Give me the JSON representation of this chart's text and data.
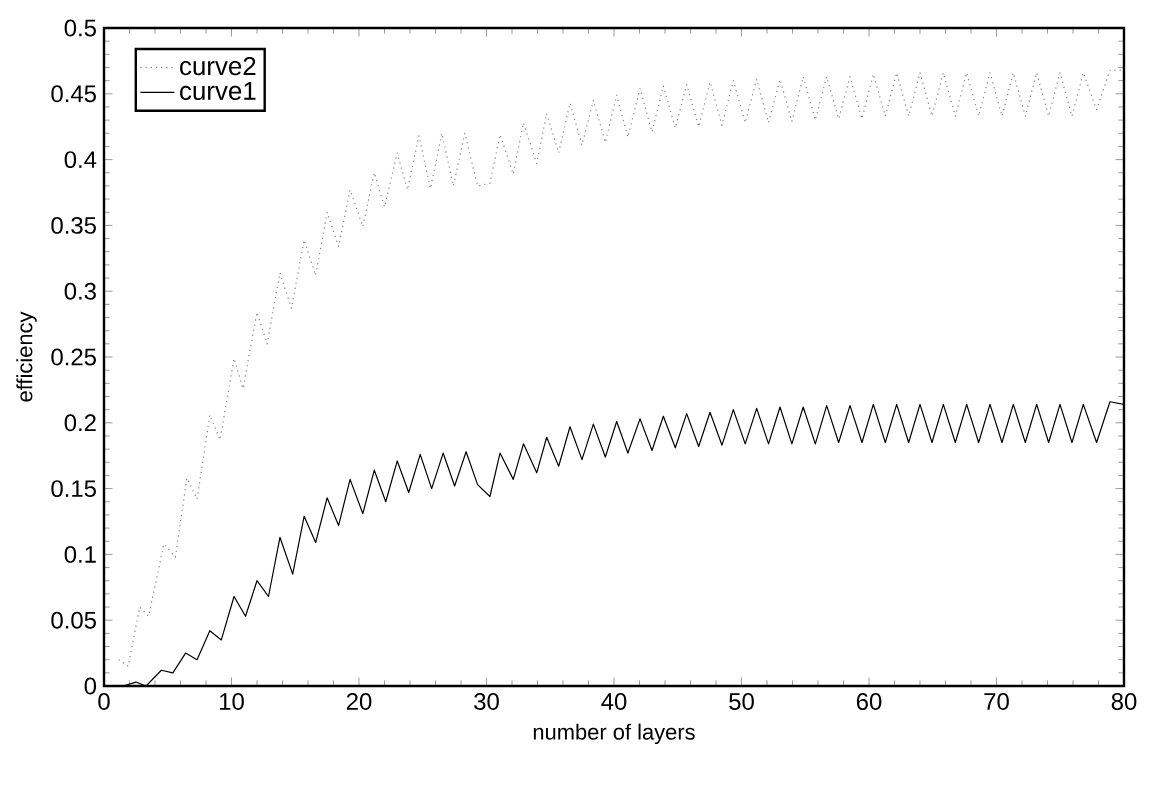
{
  "chart_data": {
    "type": "line",
    "xlabel": "number of layers",
    "ylabel": "efficiency",
    "xlim": [
      0,
      80
    ],
    "ylim": [
      0,
      0.5
    ],
    "xticks": [
      0,
      10,
      20,
      30,
      40,
      50,
      60,
      70,
      80
    ],
    "yticks": [
      0,
      0.05,
      0.1,
      0.15,
      0.2,
      0.25,
      0.3,
      0.35,
      0.4,
      0.45,
      0.5
    ],
    "legend": "top left",
    "grid": false,
    "series": [
      {
        "name": "curve2",
        "color": "#808080",
        "line_style": "dotted",
        "x": [
          1.15,
          1.9,
          2.8,
          3.5,
          4.7,
          5.6,
          6.5,
          7.3,
          8.3,
          9.1,
          10.2,
          10.9,
          12,
          12.8,
          13.8,
          14.7,
          15.7,
          16.6,
          17.5,
          18.4,
          19.3,
          20.3,
          21.2,
          22,
          23,
          23.8,
          24.7,
          25.6,
          26.5,
          27.4,
          28.3,
          29.3,
          30.27,
          31.06,
          32.1,
          32.9,
          33.94,
          34.72,
          35.66,
          36.55,
          37.49,
          38.38,
          39.32,
          40.21,
          41.09,
          42.04,
          42.98,
          43.87,
          44.81,
          45.7,
          46.64,
          47.53,
          48.47,
          49.36,
          50.29,
          51.19,
          52.12,
          53.02,
          53.95,
          54.84,
          55.79,
          56.68,
          57.62,
          58.51,
          59.45,
          60.34,
          61.28,
          62.17,
          63.11,
          64,
          64.94,
          65.83,
          66.77,
          67.66,
          68.6,
          69.49,
          70.43,
          71.32,
          72.26,
          73.15,
          74.09,
          74.98,
          75.92,
          76.81,
          77.85,
          78.9,
          80
        ],
        "values": [
          0.02,
          0.015,
          0.06,
          0.053,
          0.108,
          0.098,
          0.158,
          0.142,
          0.206,
          0.187,
          0.249,
          0.226,
          0.284,
          0.26,
          0.314,
          0.287,
          0.339,
          0.312,
          0.36,
          0.334,
          0.377,
          0.349,
          0.39,
          0.364,
          0.405,
          0.377,
          0.418,
          0.378,
          0.42,
          0.38,
          0.42,
          0.38,
          0.382,
          0.419,
          0.389,
          0.428,
          0.397,
          0.435,
          0.405,
          0.443,
          0.411,
          0.445,
          0.413,
          0.449,
          0.417,
          0.454,
          0.421,
          0.456,
          0.424,
          0.457,
          0.425,
          0.459,
          0.426,
          0.46,
          0.428,
          0.461,
          0.428,
          0.461,
          0.429,
          0.463,
          0.43,
          0.463,
          0.431,
          0.463,
          0.431,
          0.465,
          0.433,
          0.466,
          0.433,
          0.466,
          0.433,
          0.466,
          0.433,
          0.466,
          0.433,
          0.466,
          0.433,
          0.466,
          0.433,
          0.466,
          0.433,
          0.466,
          0.433,
          0.466,
          0.438,
          0.468,
          0.468
        ]
      },
      {
        "name": "curve1",
        "color": "#000000",
        "line_style": "solid",
        "x": [
          1.5,
          2.5,
          3.3,
          4.5,
          5.4,
          6.4,
          7.3,
          8.3,
          9.2,
          10.2,
          11.1,
          12,
          12.9,
          13.8,
          14.8,
          15.7,
          16.6,
          17.5,
          18.4,
          19.3,
          20.3,
          21.2,
          22.1,
          23,
          23.9,
          24.8,
          25.7,
          26.6,
          27.5,
          28.4,
          29.3,
          30.27,
          31.06,
          32.1,
          32.9,
          33.94,
          34.72,
          35.66,
          36.55,
          37.49,
          38.38,
          39.32,
          40.21,
          41.09,
          42.04,
          42.98,
          43.87,
          44.81,
          45.7,
          46.64,
          47.53,
          48.47,
          49.36,
          50.29,
          51.19,
          52.12,
          53.02,
          53.95,
          54.84,
          55.79,
          56.68,
          57.62,
          58.51,
          59.45,
          60.34,
          61.28,
          62.17,
          63.11,
          64,
          64.94,
          65.83,
          66.77,
          67.66,
          68.6,
          69.49,
          70.43,
          71.32,
          72.26,
          73.15,
          74.09,
          74.98,
          75.92,
          76.81,
          77.85,
          78.9,
          80
        ],
        "values": [
          0,
          0.003,
          0,
          0.012,
          0.01,
          0.025,
          0.02,
          0.042,
          0.035,
          0.068,
          0.053,
          0.08,
          0.068,
          0.113,
          0.085,
          0.129,
          0.109,
          0.143,
          0.122,
          0.157,
          0.131,
          0.164,
          0.14,
          0.171,
          0.147,
          0.176,
          0.15,
          0.177,
          0.152,
          0.178,
          0.153,
          0.144,
          0.177,
          0.157,
          0.184,
          0.162,
          0.189,
          0.167,
          0.197,
          0.172,
          0.199,
          0.174,
          0.201,
          0.177,
          0.203,
          0.179,
          0.205,
          0.181,
          0.207,
          0.182,
          0.208,
          0.183,
          0.21,
          0.184,
          0.211,
          0.184,
          0.212,
          0.184,
          0.212,
          0.184,
          0.213,
          0.185,
          0.213,
          0.185,
          0.214,
          0.185,
          0.214,
          0.185,
          0.214,
          0.185,
          0.214,
          0.185,
          0.214,
          0.185,
          0.214,
          0.185,
          0.214,
          0.185,
          0.214,
          0.185,
          0.214,
          0.185,
          0.214,
          0.185,
          0.216,
          0.214
        ]
      }
    ]
  }
}
